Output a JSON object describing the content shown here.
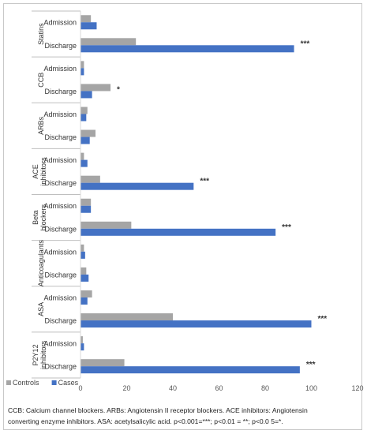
{
  "chart_data": {
    "type": "bar",
    "orientation": "horizontal",
    "groups": [
      {
        "name": "Statins",
        "rows": [
          {
            "label": "Admission",
            "controls": 4.5,
            "cases": 7,
            "sig": ""
          },
          {
            "label": "Discharge",
            "controls": 24,
            "cases": 92.5,
            "sig": "***"
          }
        ]
      },
      {
        "name": "CCB",
        "rows": [
          {
            "label": "Admission",
            "controls": 1.5,
            "cases": 1.5,
            "sig": ""
          },
          {
            "label": "Discharge",
            "controls": 13,
            "cases": 5,
            "sig": "*"
          }
        ]
      },
      {
        "name": "ARBs",
        "rows": [
          {
            "label": "Admission",
            "controls": 3,
            "cases": 2.5,
            "sig": ""
          },
          {
            "label": "Discharge",
            "controls": 6.5,
            "cases": 4,
            "sig": ""
          }
        ]
      },
      {
        "name": "ACE inhibitors",
        "rows": [
          {
            "label": "Admission",
            "controls": 1.5,
            "cases": 3,
            "sig": ""
          },
          {
            "label": "Discharge",
            "controls": 8.5,
            "cases": 49,
            "sig": "***"
          }
        ]
      },
      {
        "name": "Beta blockers",
        "rows": [
          {
            "label": "Admission",
            "controls": 4.5,
            "cases": 4.5,
            "sig": ""
          },
          {
            "label": "Discharge",
            "controls": 22,
            "cases": 84.5,
            "sig": "***"
          }
        ]
      },
      {
        "name": "Anticoagulants",
        "rows": [
          {
            "label": "Admission",
            "controls": 1.5,
            "cases": 2,
            "sig": ""
          },
          {
            "label": "Discharge",
            "controls": 2.5,
            "cases": 3.5,
            "sig": ""
          }
        ]
      },
      {
        "name": "ASA",
        "rows": [
          {
            "label": "Admission",
            "controls": 5,
            "cases": 3,
            "sig": ""
          },
          {
            "label": "Discharge",
            "controls": 40,
            "cases": 100,
            "sig": "***"
          }
        ]
      },
      {
        "name": "P2Y12 inhibitors",
        "rows": [
          {
            "label": "Admission",
            "controls": 1,
            "cases": 1.5,
            "sig": ""
          },
          {
            "label": "Discharge",
            "controls": 19,
            "cases": 95,
            "sig": "***"
          }
        ]
      }
    ],
    "series": [
      {
        "name": "Controls",
        "key": "controls",
        "color": "#a5a5a5"
      },
      {
        "name": "Cases",
        "key": "cases",
        "color": "#4472c4"
      }
    ],
    "xlim": [
      0,
      120
    ],
    "xticks": [
      0,
      20,
      40,
      60,
      80,
      100,
      120
    ],
    "grid": false,
    "legend_position": "bottom-left"
  },
  "caption": {
    "line1": "CCB: Calcium channel blockers. ARBs: Angiotensin II receptor blockers. ACE inhibitors: Angiotensin",
    "line2": "converting enzyme inhibitors. ASA: acetylsalicylic acid. p<0.001=***; p<0.01 = **; p<0.0 5=*."
  }
}
